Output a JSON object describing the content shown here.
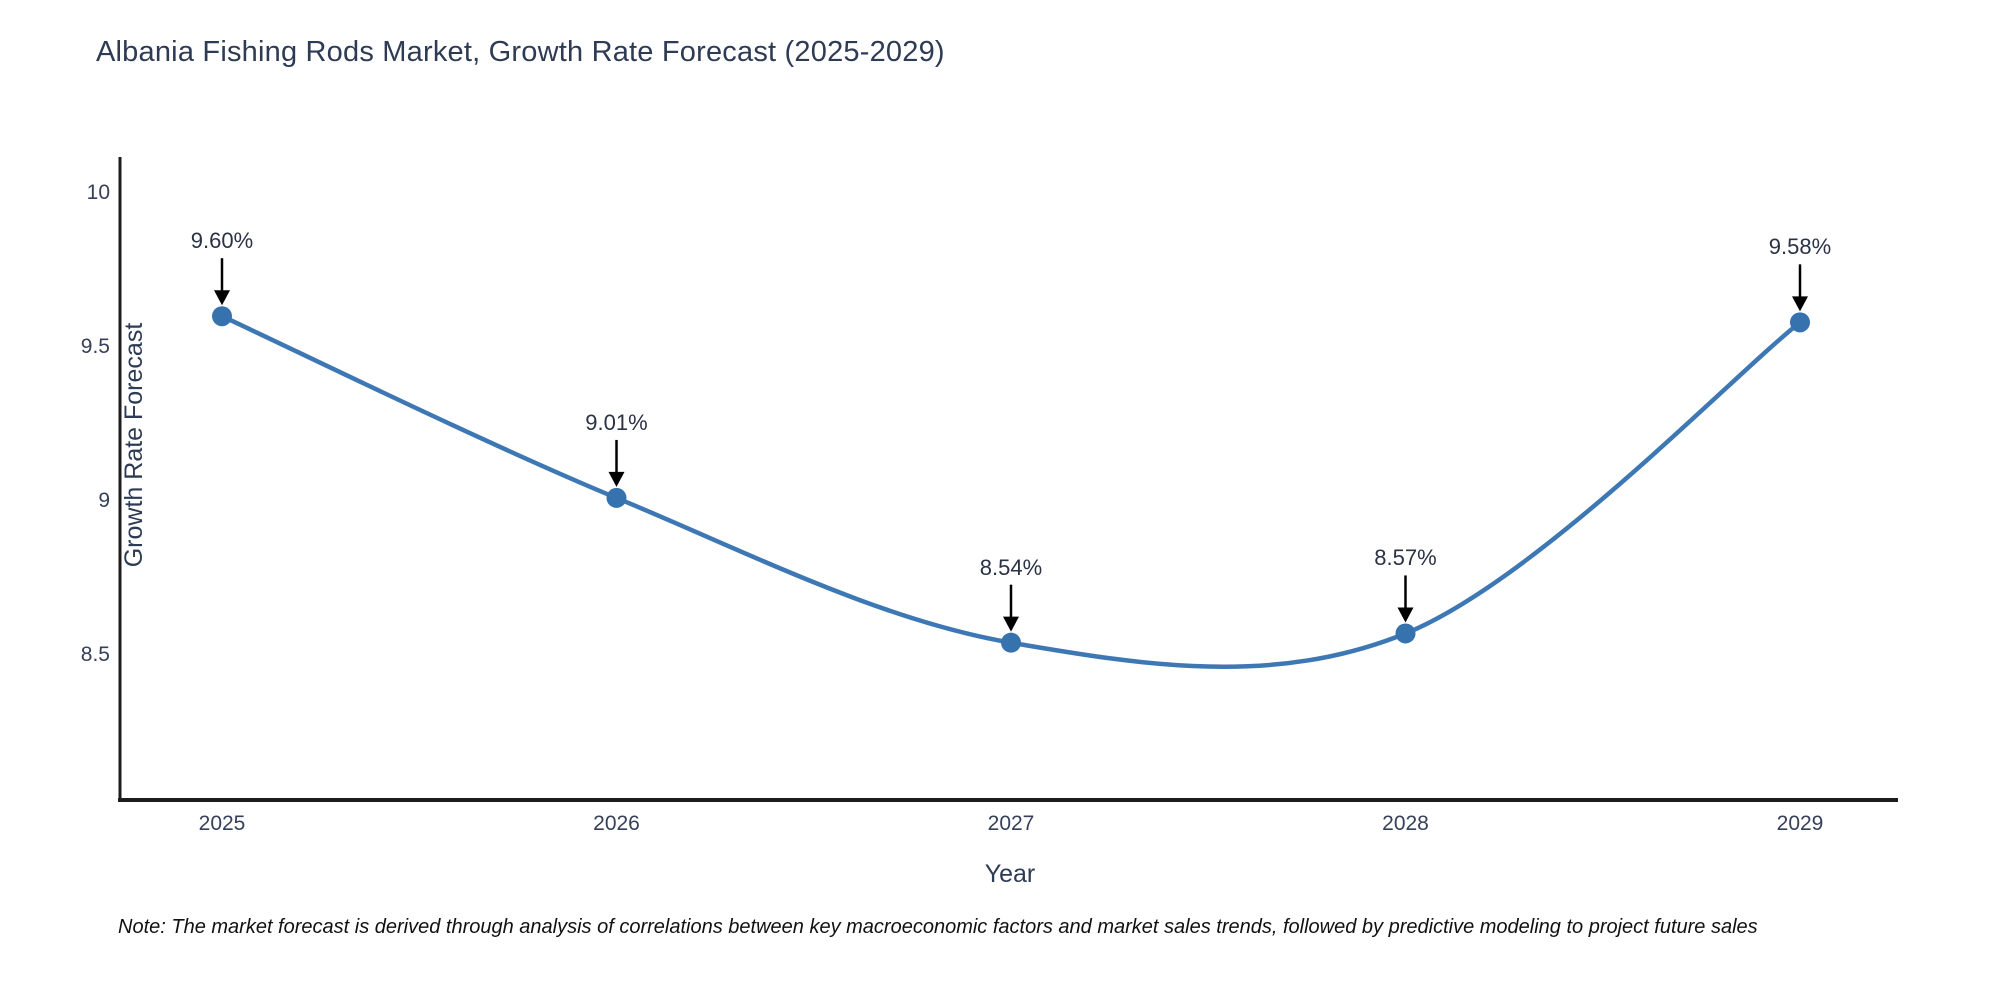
{
  "title": "Albania Fishing Rods Market, Growth Rate Forecast (2025-2029)",
  "note": "Note: The market forecast is derived through analysis of correlations between key macroeconomic factors and market sales trends, followed by predictive modeling to project future sales",
  "colors": {
    "line": "#3d78b4",
    "marker": "#3572ae",
    "axis_line": "#1c1c1c",
    "arrow": "#000000",
    "title_text": "#2e3b54",
    "tick_text": "#36405a"
  },
  "chart_data": {
    "type": "line",
    "line_shape": "spline",
    "categories": [
      "2025",
      "2026",
      "2027",
      "2028",
      "2029"
    ],
    "values": [
      9.6,
      9.01,
      8.54,
      8.57,
      9.58
    ],
    "data_labels": [
      "9.60%",
      "9.01%",
      "8.54%",
      "8.57%",
      "9.58%"
    ],
    "title": "Albania Fishing Rods Market, Growth Rate Forecast (2025-2029)",
    "xlabel": "Year",
    "ylabel": "Growth Rate Forecast",
    "ylim": [
      8.03,
      10.11
    ],
    "yticks": [
      {
        "label": "10",
        "value": 10.0
      },
      {
        "label": "9.5",
        "value": 9.5
      },
      {
        "label": "9",
        "value": 9.0
      },
      {
        "label": "8.5",
        "value": 8.5
      }
    ],
    "grid": false,
    "legend": false,
    "markers": true,
    "annotations_style": "value label with down arrow to each point"
  }
}
